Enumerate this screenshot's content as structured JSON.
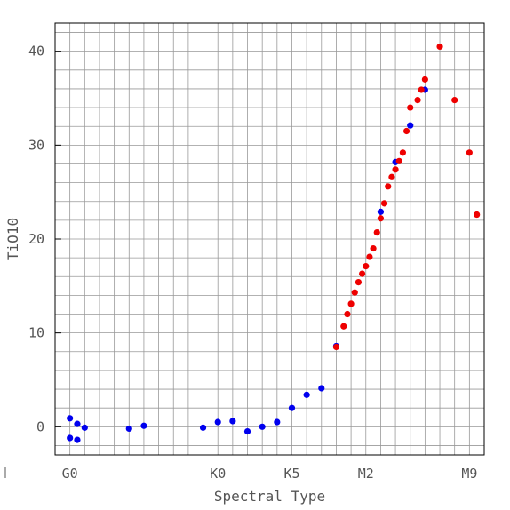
{
  "chart_data": {
    "type": "scatter",
    "title": "",
    "xlabel": "Spectral Type",
    "ylabel": "TiO10",
    "x_categories": [
      "G0",
      "K0",
      "K5",
      "M2",
      "M9"
    ],
    "x_category_values": [
      0,
      10,
      15,
      20,
      27
    ],
    "xlim": [
      -1,
      28
    ],
    "ylim": [
      -3,
      43
    ],
    "y_ticks": [
      0,
      10,
      20,
      30,
      40
    ],
    "grid": true,
    "series": [
      {
        "color": "#0000ee",
        "points": [
          [
            0,
            0.9
          ],
          [
            0,
            -1.2
          ],
          [
            0.5,
            0.3
          ],
          [
            0.5,
            -1.4
          ],
          [
            1,
            -0.1
          ],
          [
            4,
            -0.2
          ],
          [
            5,
            0.1
          ],
          [
            9,
            -0.1
          ],
          [
            10,
            0.5
          ],
          [
            11,
            0.6
          ],
          [
            12,
            -0.5
          ],
          [
            13,
            0.0
          ],
          [
            14,
            0.5
          ],
          [
            15,
            2.0
          ],
          [
            16,
            3.4
          ],
          [
            17,
            4.1
          ],
          [
            18,
            8.6
          ],
          [
            21,
            22.9
          ],
          [
            22,
            28.2
          ],
          [
            23,
            32.1
          ],
          [
            24,
            35.9
          ]
        ]
      },
      {
        "color": "#ee0000",
        "points": [
          [
            18,
            8.5
          ],
          [
            18.5,
            10.7
          ],
          [
            18.75,
            12.0
          ],
          [
            19,
            13.1
          ],
          [
            19.25,
            14.3
          ],
          [
            19.5,
            15.4
          ],
          [
            19.75,
            16.3
          ],
          [
            20,
            17.1
          ],
          [
            20.25,
            18.1
          ],
          [
            20.5,
            19.0
          ],
          [
            20.75,
            20.7
          ],
          [
            21,
            22.2
          ],
          [
            21.25,
            23.8
          ],
          [
            21.5,
            25.6
          ],
          [
            21.75,
            26.6
          ],
          [
            22,
            27.4
          ],
          [
            22.25,
            28.3
          ],
          [
            22.5,
            29.2
          ],
          [
            22.75,
            31.5
          ],
          [
            23,
            34.0
          ],
          [
            23.5,
            34.8
          ],
          [
            23.75,
            35.9
          ],
          [
            24,
            37.0
          ],
          [
            25,
            40.5
          ],
          [
            26,
            34.8
          ],
          [
            27,
            29.2
          ],
          [
            27.5,
            22.6
          ]
        ]
      }
    ]
  }
}
